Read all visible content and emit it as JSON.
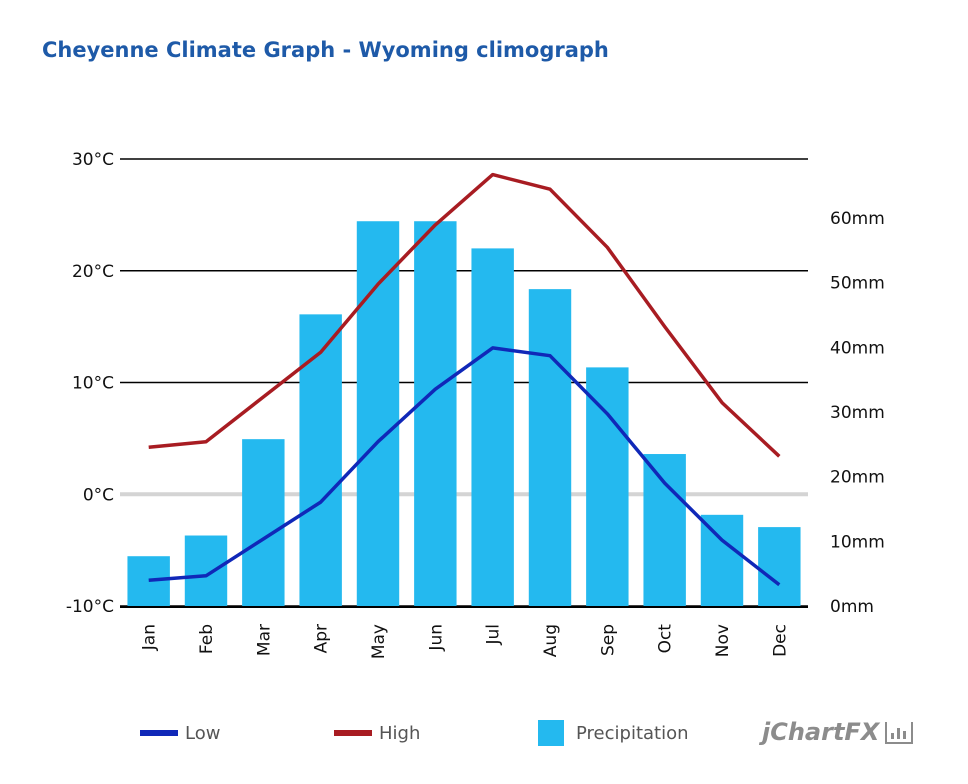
{
  "chart_data": {
    "type": "bar+line",
    "title": "Cheyenne Climate Graph - Wyoming climograph",
    "categories": [
      "Jan",
      "Feb",
      "Mar",
      "Apr",
      "May",
      "Jun",
      "Jul",
      "Aug",
      "Sep",
      "Oct",
      "Nov",
      "Dec"
    ],
    "y_left": {
      "ticks": [
        "30°C",
        "20°C",
        "10°C",
        "0°C",
        "-10°C"
      ],
      "range": [
        -10,
        30
      ],
      "unit": "°C"
    },
    "y_right": {
      "ticks": [
        "60mm",
        "50mm",
        "40mm",
        "30mm",
        "20mm",
        "10mm",
        "0mm"
      ],
      "range": [
        0,
        60
      ],
      "unit": "mm"
    },
    "series": [
      {
        "name": "Low",
        "type": "line",
        "axis": "left",
        "color": "#1028b8",
        "values": [
          -7.7,
          -7.3,
          -4.0,
          -0.7,
          4.7,
          9.4,
          13.1,
          12.4,
          7.2,
          1.0,
          -4.1,
          -8.1
        ]
      },
      {
        "name": "High",
        "type": "line",
        "axis": "left",
        "color": "#a81c22",
        "values": [
          4.2,
          4.7,
          8.7,
          12.7,
          18.8,
          24.1,
          28.6,
          27.3,
          22.1,
          15.0,
          8.2,
          3.4
        ]
      },
      {
        "name": "Precipitation",
        "type": "bar",
        "axis": "right",
        "color": "#24b9ef",
        "values": [
          7.7,
          10.9,
          25.8,
          45.1,
          59.5,
          59.5,
          55.3,
          49.0,
          36.9,
          23.5,
          14.1,
          12.2
        ]
      }
    ],
    "grid": true,
    "legend_position": "bottom"
  },
  "brand": "jChartFX"
}
